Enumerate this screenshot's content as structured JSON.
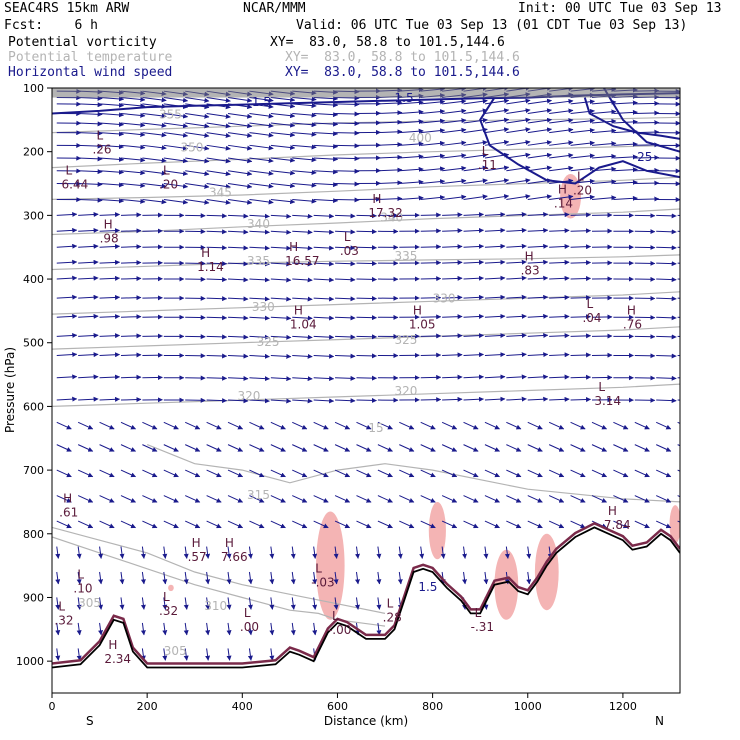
{
  "header": {
    "model": "SEAC4RS 15km ARW",
    "org": "NCAR/MMM",
    "init": "Init: 00 UTC Tue 03 Sep 13",
    "fcst": "Fcst:    6 h",
    "valid": "Valid: 06 UTC Tue 03 Sep 13 (01 CDT Tue 03 Sep 13)",
    "field1": "Potential vorticity",
    "field2": "Potential temperature",
    "field3": "Horizontal wind speed",
    "xy1": "XY=  83.0, 58.8 to 101.5,144.6",
    "xy2": "XY=  83.0, 58.8 to 101.5,144.6",
    "xy3": "XY=  83.0, 58.8 to 101.5,144.6"
  },
  "colors": {
    "pv": "#1a1a8c",
    "theta": "#b4b4b4",
    "wind": "#1a1a8c",
    "highlight": "#f4b4b4",
    "terrain": "#000000",
    "hl_text": "#5a1a3a"
  },
  "chart_data": {
    "type": "cross-section",
    "xlabel": "Distance (km)",
    "ylabel": "Pressure (hPa)",
    "xlim": [
      0,
      1320
    ],
    "ylim": [
      1050,
      100
    ],
    "x_ticks": [
      0,
      200,
      400,
      600,
      800,
      1000,
      1200
    ],
    "y_ticks": [
      100,
      200,
      300,
      400,
      500,
      600,
      700,
      800,
      900,
      1000
    ],
    "endpoints": {
      "left": "S",
      "right": "N"
    },
    "theta_contours": [
      {
        "label": "305",
        "points": [
          [
            0,
            805
          ],
          [
            100,
            830
          ],
          [
            200,
            855
          ],
          [
            300,
            880
          ],
          [
            400,
            900
          ],
          [
            500,
            920
          ],
          [
            560,
            925
          ],
          [
            600,
            935
          ],
          [
            700,
            945
          ]
        ]
      },
      {
        "label": "310",
        "points": [
          [
            0,
            790
          ],
          [
            100,
            810
          ],
          [
            200,
            830
          ],
          [
            300,
            860
          ],
          [
            400,
            880
          ],
          [
            500,
            895
          ],
          [
            600,
            910
          ],
          [
            700,
            925
          ]
        ]
      },
      {
        "label": "315",
        "points": [
          [
            200,
            660
          ],
          [
            300,
            690
          ],
          [
            400,
            700
          ],
          [
            500,
            720
          ],
          [
            600,
            700
          ],
          [
            700,
            690
          ],
          [
            800,
            700
          ],
          [
            1000,
            730
          ],
          [
            1200,
            745
          ],
          [
            1320,
            750
          ]
        ]
      },
      {
        "label": "320",
        "points": [
          [
            0,
            600
          ],
          [
            200,
            595
          ],
          [
            400,
            590
          ],
          [
            600,
            585
          ],
          [
            800,
            580
          ],
          [
            1000,
            575
          ],
          [
            1200,
            570
          ],
          [
            1320,
            565
          ]
        ]
      },
      {
        "label": "325",
        "points": [
          [
            0,
            510
          ],
          [
            200,
            505
          ],
          [
            400,
            500
          ],
          [
            600,
            495
          ],
          [
            800,
            490
          ],
          [
            1000,
            485
          ],
          [
            1200,
            480
          ],
          [
            1320,
            475
          ]
        ]
      },
      {
        "label": "330",
        "points": [
          [
            0,
            455
          ],
          [
            200,
            450
          ],
          [
            400,
            445
          ],
          [
            600,
            440
          ],
          [
            800,
            435
          ],
          [
            1000,
            430
          ],
          [
            1200,
            425
          ],
          [
            1320,
            420
          ]
        ]
      },
      {
        "label": "335",
        "points": [
          [
            0,
            385
          ],
          [
            200,
            380
          ],
          [
            400,
            375
          ],
          [
            600,
            372
          ],
          [
            800,
            370
          ],
          [
            1000,
            368
          ],
          [
            1200,
            365
          ],
          [
            1320,
            362
          ]
        ]
      },
      {
        "label": "340",
        "points": [
          [
            0,
            330
          ],
          [
            200,
            325
          ],
          [
            400,
            318
          ],
          [
            600,
            312
          ],
          [
            800,
            305
          ],
          [
            1000,
            300
          ],
          [
            1200,
            295
          ],
          [
            1320,
            290
          ]
        ]
      },
      {
        "label": "345",
        "points": [
          [
            0,
            275
          ],
          [
            200,
            272
          ],
          [
            400,
            268
          ],
          [
            600,
            262
          ],
          [
            800,
            255
          ],
          [
            1000,
            250
          ],
          [
            1200,
            245
          ],
          [
            1320,
            240
          ]
        ]
      },
      {
        "label": "350",
        "points": [
          [
            0,
            225
          ],
          [
            200,
            218
          ],
          [
            400,
            212
          ],
          [
            600,
            205
          ],
          [
            800,
            200
          ],
          [
            1000,
            196
          ],
          [
            1200,
            192
          ],
          [
            1320,
            190
          ]
        ]
      },
      {
        "label": "355",
        "points": [
          [
            0,
            170
          ],
          [
            200,
            165
          ],
          [
            400,
            160
          ],
          [
            600,
            155
          ],
          [
            800,
            152
          ],
          [
            1000,
            150
          ],
          [
            1200,
            148
          ],
          [
            1320,
            146
          ]
        ]
      }
    ],
    "theta_labels": [
      {
        "text": "305",
        "x": 55,
        "p": 915
      },
      {
        "text": "305",
        "x": 235,
        "p": 990
      },
      {
        "text": "310",
        "x": 320,
        "p": 920
      },
      {
        "text": "315",
        "x": 410,
        "p": 745
      },
      {
        "text": "320",
        "x": 390,
        "p": 590
      },
      {
        "text": "320",
        "x": 720,
        "p": 582
      },
      {
        "text": "325",
        "x": 430,
        "p": 505
      },
      {
        "text": "325",
        "x": 720,
        "p": 502
      },
      {
        "text": "330",
        "x": 420,
        "p": 450
      },
      {
        "text": "330",
        "x": 800,
        "p": 437
      },
      {
        "text": "335",
        "x": 410,
        "p": 378
      },
      {
        "text": "335",
        "x": 720,
        "p": 370
      },
      {
        "text": "340",
        "x": 410,
        "p": 320
      },
      {
        "text": "340",
        "x": 690,
        "p": 310
      },
      {
        "text": "345",
        "x": 330,
        "p": 270
      },
      {
        "text": "350",
        "x": 270,
        "p": 200
      },
      {
        "text": "355",
        "x": 225,
        "p": 148
      },
      {
        "text": "400",
        "x": 750,
        "p": 185
      },
      {
        "text": "15",
        "x": 665,
        "p": 640
      }
    ],
    "pv_labels": [
      {
        "text": "1.5",
        "x": 420,
        "p": 128
      },
      {
        "text": "1.5",
        "x": 720,
        "p": 122
      },
      {
        "text": "25",
        "x": 1230,
        "p": 215
      },
      {
        "text": "1.5",
        "x": 770,
        "p": 890
      }
    ],
    "extrema": [
      {
        "type": "L",
        "value": ".26",
        "x": 85,
        "p": 190
      },
      {
        "type": "L",
        "value": "6.44",
        "x": 20,
        "p": 245
      },
      {
        "type": "L",
        "value": ".20",
        "x": 225,
        "p": 245
      },
      {
        "type": "H",
        "value": ".98",
        "x": 100,
        "p": 330
      },
      {
        "type": "H",
        "value": "1.14",
        "x": 305,
        "p": 375
      },
      {
        "type": "H",
        "value": "16.57",
        "x": 490,
        "p": 365
      },
      {
        "type": "L",
        "value": ".03",
        "x": 605,
        "p": 350
      },
      {
        "type": "H",
        "value": "17.32",
        "x": 665,
        "p": 290
      },
      {
        "type": "L",
        "value": ".11",
        "x": 895,
        "p": 215
      },
      {
        "type": "L",
        "value": ".20",
        "x": 1095,
        "p": 255
      },
      {
        "type": "H",
        "value": ".14",
        "x": 1055,
        "p": 275
      },
      {
        "type": "H",
        "value": ".83",
        "x": 985,
        "p": 380
      },
      {
        "type": "H",
        "value": "1.04",
        "x": 500,
        "p": 465
      },
      {
        "type": "H",
        "value": "1.05",
        "x": 750,
        "p": 465
      },
      {
        "type": "L",
        "value": ".04",
        "x": 1115,
        "p": 455
      },
      {
        "type": "H",
        "value": ".76",
        "x": 1200,
        "p": 465
      },
      {
        "type": "L",
        "value": "3.14",
        "x": 1140,
        "p": 585
      },
      {
        "type": "H",
        "value": ".61",
        "x": 15,
        "p": 760
      },
      {
        "type": "H",
        "value": "7.84",
        "x": 1160,
        "p": 780
      },
      {
        "type": "H",
        "value": ".57",
        "x": 285,
        "p": 830
      },
      {
        "type": "H",
        "value": "7.66",
        "x": 355,
        "p": 830
      },
      {
        "type": "L",
        "value": "-.03",
        "x": 545,
        "p": 870
      },
      {
        "type": "L",
        "value": ".10",
        "x": 45,
        "p": 880
      },
      {
        "type": "L",
        "value": ".32",
        "x": 225,
        "p": 915
      },
      {
        "type": "L",
        "value": ".32",
        "x": 5,
        "p": 930
      },
      {
        "type": "L",
        "value": ".00",
        "x": 395,
        "p": 940
      },
      {
        "type": "L",
        "value": "-.00",
        "x": 580,
        "p": 945
      },
      {
        "type": "L",
        "value": ".28",
        "x": 695,
        "p": 925
      },
      {
        "type": "L",
        "value": "-.31",
        "x": 880,
        "p": 940
      },
      {
        "type": "H",
        "value": "2.34",
        "x": 110,
        "p": 990
      }
    ],
    "terrain": [
      [
        0,
        1010
      ],
      [
        60,
        1005
      ],
      [
        100,
        975
      ],
      [
        130,
        935
      ],
      [
        150,
        940
      ],
      [
        170,
        985
      ],
      [
        200,
        1010
      ],
      [
        300,
        1010
      ],
      [
        400,
        1010
      ],
      [
        470,
        1005
      ],
      [
        500,
        985
      ],
      [
        520,
        990
      ],
      [
        550,
        1000
      ],
      [
        580,
        955
      ],
      [
        600,
        940
      ],
      [
        620,
        945
      ],
      [
        660,
        965
      ],
      [
        700,
        965
      ],
      [
        720,
        950
      ],
      [
        740,
        905
      ],
      [
        760,
        860
      ],
      [
        780,
        855
      ],
      [
        800,
        860
      ],
      [
        830,
        885
      ],
      [
        860,
        905
      ],
      [
        880,
        925
      ],
      [
        900,
        925
      ],
      [
        930,
        880
      ],
      [
        960,
        875
      ],
      [
        980,
        890
      ],
      [
        1000,
        895
      ],
      [
        1020,
        875
      ],
      [
        1040,
        850
      ],
      [
        1060,
        830
      ],
      [
        1100,
        805
      ],
      [
        1140,
        790
      ],
      [
        1200,
        810
      ],
      [
        1220,
        825
      ],
      [
        1250,
        820
      ],
      [
        1280,
        800
      ],
      [
        1300,
        810
      ],
      [
        1320,
        830
      ]
    ],
    "highlight_regions": [
      {
        "cx": 585,
        "cp": 850,
        "rx": 30,
        "rp": 85
      },
      {
        "cx": 810,
        "cp": 795,
        "rx": 18,
        "rp": 45
      },
      {
        "cx": 955,
        "cp": 880,
        "rx": 25,
        "rp": 55
      },
      {
        "cx": 1040,
        "cp": 860,
        "rx": 25,
        "rp": 60
      },
      {
        "cx": 1090,
        "cp": 270,
        "rx": 22,
        "rp": 35
      },
      {
        "cx": 1310,
        "cp": 785,
        "rx": 12,
        "rp": 30
      },
      {
        "cx": 250,
        "cp": 885,
        "rx": 6,
        "rp": 5
      }
    ],
    "pv_contours": [
      {
        "points": [
          [
            0,
            140
          ],
          [
            100,
            136
          ],
          [
            200,
            130
          ],
          [
            300,
            128
          ],
          [
            400,
            126
          ],
          [
            500,
            124
          ],
          [
            600,
            122
          ],
          [
            700,
            120
          ],
          [
            800,
            118
          ],
          [
            900,
            116
          ],
          [
            1000,
            115
          ],
          [
            1100,
            112
          ],
          [
            1200,
            110
          ],
          [
            1320,
            108
          ]
        ]
      },
      {
        "points": [
          [
            930,
            115
          ],
          [
            900,
            150
          ],
          [
            920,
            190
          ],
          [
            980,
            220
          ],
          [
            1040,
            245
          ],
          [
            1100,
            250
          ],
          [
            1150,
            225
          ],
          [
            1200,
            215
          ],
          [
            1250,
            230
          ],
          [
            1320,
            240
          ]
        ]
      },
      {
        "points": [
          [
            1120,
            115
          ],
          [
            1130,
            140
          ],
          [
            1180,
            160
          ],
          [
            1230,
            170
          ],
          [
            1280,
            175
          ],
          [
            1320,
            180
          ]
        ]
      },
      {
        "points": [
          [
            1160,
            100
          ],
          [
            1200,
            150
          ],
          [
            1250,
            185
          ],
          [
            1320,
            200
          ]
        ]
      }
    ],
    "wind_field": {
      "x_step": 45,
      "p_levels": [
        105,
        115,
        125,
        140,
        155,
        170,
        190,
        210,
        230,
        250,
        275,
        300,
        325,
        350,
        375,
        400,
        430,
        460,
        490,
        520,
        555,
        590,
        625,
        660,
        700,
        740,
        780,
        820,
        860,
        900,
        940,
        980
      ]
    }
  }
}
